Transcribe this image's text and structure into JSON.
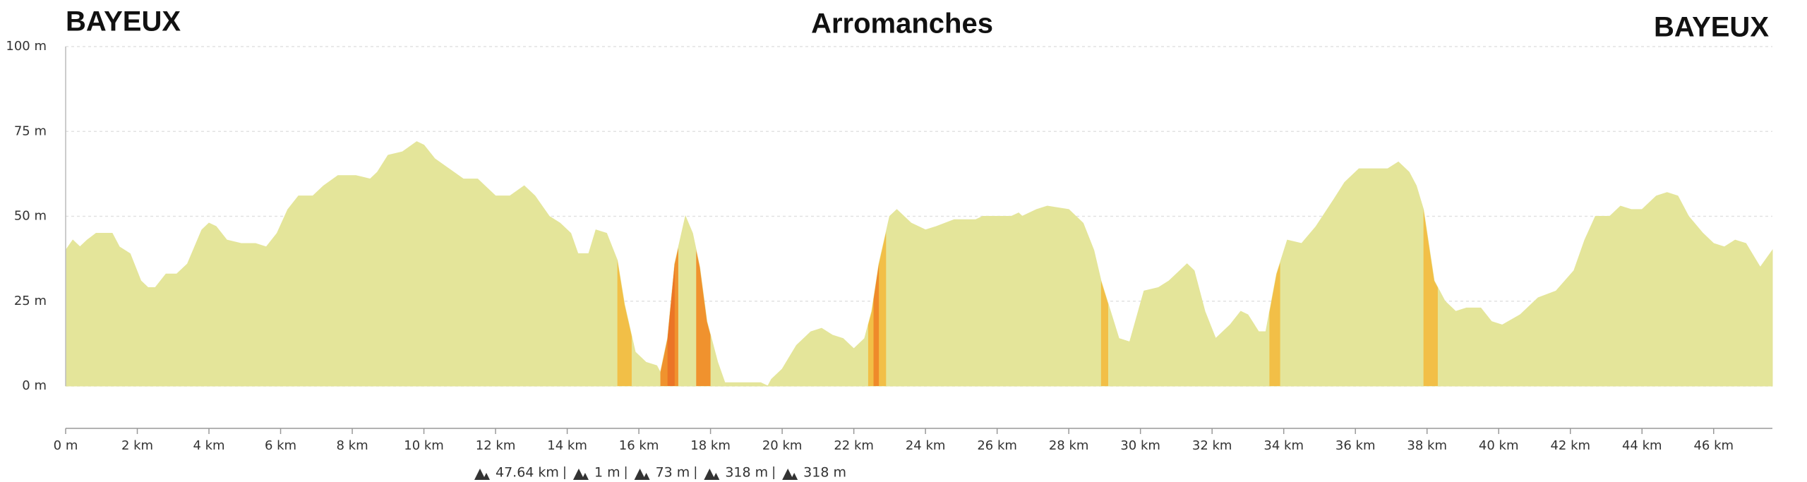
{
  "chart_data": {
    "type": "area",
    "title_left": "BAYEUX",
    "title": "Arromanches",
    "title_right": "BAYEUX",
    "color": "#e4e59a",
    "x": [
      0,
      0.2,
      0.4,
      0.6,
      0.85,
      1.3,
      1.5,
      1.8,
      2.1,
      2.3,
      2.5,
      2.8,
      3.1,
      3.4,
      3.8,
      4.0,
      4.2,
      4.5,
      4.9,
      5.3,
      5.6,
      5.9,
      6.2,
      6.5,
      6.9,
      7.2,
      7.6,
      8.1,
      8.5,
      8.7,
      9.0,
      9.4,
      9.8,
      10.0,
      10.3,
      10.7,
      11.1,
      11.5,
      11.7,
      12.0,
      12.4,
      12.8,
      13.1,
      13.5,
      13.8,
      14.1,
      14.3,
      14.6,
      14.8,
      15.1,
      15.4,
      15.6,
      15.9,
      16.2,
      16.5,
      16.6,
      16.8,
      17.0,
      17.3,
      17.5,
      17.7,
      17.9,
      18.2,
      18.4,
      19.4,
      19.6,
      19.7,
      20.0,
      20.4,
      20.8,
      21.1,
      21.4,
      21.7,
      22.0,
      22.3,
      22.5,
      22.7,
      23.0,
      23.2,
      23.6,
      24.0,
      24.3,
      24.8,
      25.4,
      25.6,
      26.4,
      26.6,
      26.7,
      27.1,
      27.4,
      28.0,
      28.4,
      28.7,
      28.9,
      29.4,
      29.7,
      30.1,
      30.5,
      30.8,
      31.3,
      31.5,
      31.8,
      32.1,
      32.5,
      32.8,
      33.0,
      33.3,
      33.5,
      33.8,
      34.1,
      34.5,
      34.9,
      35.4,
      35.7,
      36.1,
      36.4,
      36.9,
      37.2,
      37.5,
      37.7,
      37.9,
      38.2,
      38.5,
      38.8,
      39.1,
      39.5,
      39.8,
      40.1,
      40.6,
      41.1,
      41.6,
      42.1,
      42.4,
      42.7,
      43.1,
      43.4,
      43.7,
      44.0,
      44.4,
      44.7,
      45.0,
      45.3,
      45.7,
      46.0,
      46.3,
      46.6,
      46.9,
      47.3,
      47.64
    ],
    "values": [
      40,
      43,
      41,
      43,
      45,
      45,
      41,
      39,
      31,
      29,
      29,
      33,
      33,
      36,
      46,
      48,
      47,
      43,
      42,
      42,
      41,
      45,
      52,
      56,
      56,
      59,
      62,
      62,
      61,
      63,
      68,
      69,
      72,
      71,
      67,
      64,
      61,
      61,
      59,
      56,
      56,
      59,
      56,
      50,
      48,
      45,
      39,
      39,
      46,
      45,
      37,
      24,
      10,
      7,
      6,
      4,
      14,
      36,
      50,
      45,
      35,
      19,
      7,
      1,
      1,
      0,
      2,
      5,
      12,
      16,
      17,
      15,
      14,
      11,
      14,
      22,
      36,
      50,
      52,
      48,
      46,
      47,
      49,
      49,
      50,
      50,
      51,
      50,
      52,
      53,
      52,
      48,
      40,
      31,
      14,
      13,
      28,
      29,
      31,
      36,
      34,
      22,
      14,
      18,
      22,
      21,
      16,
      16,
      33,
      43,
      42,
      47,
      55,
      60,
      64,
      64,
      64,
      66,
      63,
      59,
      52,
      31,
      25,
      22,
      23,
      23,
      19,
      18,
      21,
      26,
      28,
      34,
      43,
      50,
      50,
      53,
      52,
      52,
      56,
      57,
      56,
      50,
      45,
      42,
      41,
      43,
      42,
      35,
      40
    ],
    "slope_segments": [
      {
        "from": 15.4,
        "to": 15.8,
        "color": "#f2bf47"
      },
      {
        "from": 16.6,
        "to": 17.1,
        "color": "#f0922e"
      },
      {
        "from": 16.8,
        "to": 17.0,
        "color": "#eb7526"
      },
      {
        "from": 17.6,
        "to": 18.0,
        "color": "#f0922e"
      },
      {
        "from": 22.4,
        "to": 22.9,
        "color": "#f2bf47"
      },
      {
        "from": 22.55,
        "to": 22.7,
        "color": "#ef8a2a"
      },
      {
        "from": 28.9,
        "to": 29.1,
        "color": "#f2bf47"
      },
      {
        "from": 33.6,
        "to": 33.9,
        "color": "#f2bf47"
      },
      {
        "from": 37.9,
        "to": 38.3,
        "color": "#f2bf47"
      }
    ],
    "xlim": [
      0,
      47.64
    ],
    "ylim": [
      0,
      100
    ],
    "yticks": [
      {
        "value": 0,
        "label": "0 m"
      },
      {
        "value": 25,
        "label": "25 m"
      },
      {
        "value": 50,
        "label": "50 m"
      },
      {
        "value": 75,
        "label": "75 m"
      },
      {
        "value": 100,
        "label": "100 m"
      }
    ],
    "xticks": [
      {
        "value": 0,
        "label": "0 m"
      },
      {
        "value": 2,
        "label": "2 km"
      },
      {
        "value": 4,
        "label": "4 km"
      },
      {
        "value": 6,
        "label": "6 km"
      },
      {
        "value": 8,
        "label": "8 km"
      },
      {
        "value": 10,
        "label": "10 km"
      },
      {
        "value": 12,
        "label": "12 km"
      },
      {
        "value": 14,
        "label": "14 km"
      },
      {
        "value": 16,
        "label": "16 km"
      },
      {
        "value": 18,
        "label": "18 km"
      },
      {
        "value": 20,
        "label": "20 km"
      },
      {
        "value": 22,
        "label": "22 km"
      },
      {
        "value": 24,
        "label": "24 km"
      },
      {
        "value": 26,
        "label": "26 km"
      },
      {
        "value": 28,
        "label": "28 km"
      },
      {
        "value": 30,
        "label": "30 km"
      },
      {
        "value": 32,
        "label": "32 km"
      },
      {
        "value": 34,
        "label": "34 km"
      },
      {
        "value": 36,
        "label": "36 km"
      },
      {
        "value": 38,
        "label": "38 km"
      },
      {
        "value": 40,
        "label": "40 km"
      },
      {
        "value": 42,
        "label": "42 km"
      },
      {
        "value": 44,
        "label": "44 km"
      },
      {
        "value": 46,
        "label": "46 km"
      }
    ],
    "grid": true,
    "stats": [
      "47.64 km",
      "1 m",
      "73 m",
      "318 m",
      "318 m"
    ]
  }
}
